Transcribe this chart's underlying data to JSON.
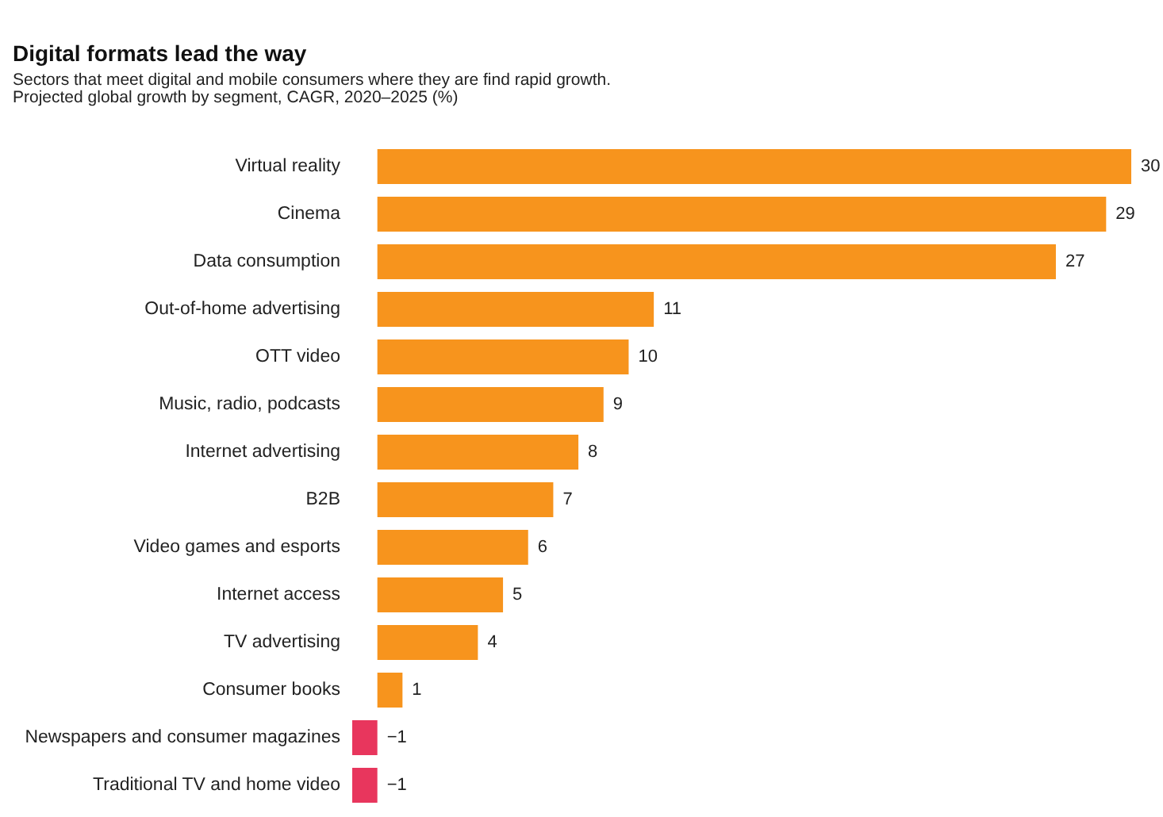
{
  "chart_data": {
    "type": "bar",
    "orientation": "horizontal",
    "title": "Digital formats lead the way",
    "subtitle": "Sectors that meet digital and mobile consumers where they are find rapid growth.",
    "annotations": [
      "Projected global growth by segment, CAGR, 2020–2025 (%)"
    ],
    "categories": [
      "Virtual reality",
      "Cinema",
      "Data consumption",
      "Out-of-home advertising",
      "OTT video",
      "Music, radio, podcasts",
      "Internet advertising",
      "B2B",
      "Video games and esports",
      "Internet access",
      "TV advertising",
      "Consumer books",
      "Newspapers and consumer magazines",
      "Traditional TV and home video"
    ],
    "values": [
      30,
      29,
      27,
      11,
      10,
      9,
      8,
      7,
      6,
      5,
      4,
      1,
      -1,
      -1
    ],
    "colors": [
      "#f7941d",
      "#f7941d",
      "#f7941d",
      "#f7941d",
      "#f7941d",
      "#f7941d",
      "#f7941d",
      "#f7941d",
      "#f7941d",
      "#f7941d",
      "#f7941d",
      "#f7941d",
      "#e8365d",
      "#e8365d"
    ],
    "xlim": [
      -1,
      30
    ],
    "data_labels": true
  }
}
